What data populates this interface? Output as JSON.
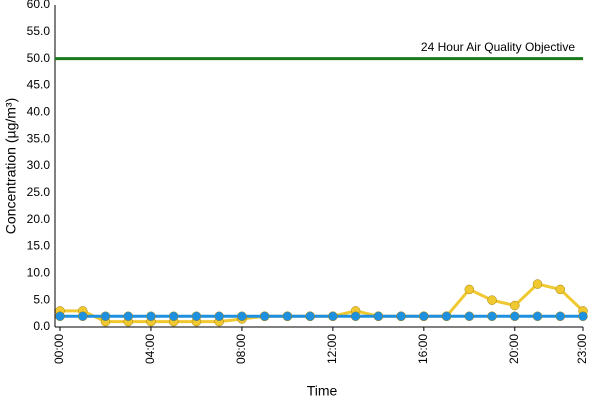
{
  "chart_data": {
    "type": "line",
    "x_label": "Time",
    "y_label": "Concentration (µg/m³)",
    "categories": [
      "00:00",
      null,
      null,
      null,
      "04:00",
      null,
      null,
      null,
      "08:00",
      null,
      null,
      null,
      "12:00",
      null,
      null,
      null,
      "16:00",
      null,
      null,
      null,
      "20:00",
      null,
      null,
      "23:00"
    ],
    "series": [
      {
        "color": "#f0c830",
        "values": [
          3,
          3,
          1,
          1,
          1,
          1,
          1,
          1,
          1.5,
          2,
          2,
          2,
          2,
          3,
          2,
          2,
          2,
          2,
          7,
          5,
          4,
          8,
          7,
          3
        ]
      },
      {
        "color": "#1e90e0",
        "values": [
          2,
          2,
          2,
          2,
          2,
          2,
          2,
          2,
          2,
          2,
          2,
          2,
          2,
          2,
          2,
          2,
          2,
          2,
          2,
          2,
          2,
          2,
          2,
          2
        ]
      }
    ],
    "objective": {
      "value": 50,
      "label": "24 Hour Air Quality Objective",
      "color": "#1a7a1a"
    },
    "ylim": [
      0,
      60
    ],
    "yticks": [
      {
        "value": 0,
        "label": "0.0"
      },
      {
        "value": 5,
        "label": "5.0"
      },
      {
        "value": 10,
        "label": "10.0"
      },
      {
        "value": 15,
        "label": "15.0"
      },
      {
        "value": 20,
        "label": "20.0"
      },
      {
        "value": 25,
        "label": "25.0"
      },
      {
        "value": 30,
        "label": "30.0"
      },
      {
        "value": 35,
        "label": "35.0"
      },
      {
        "value": 40,
        "label": "40.0"
      },
      {
        "value": 45,
        "label": "45.0"
      },
      {
        "value": 50,
        "label": "50.0"
      },
      {
        "value": 55,
        "label": "55.0"
      },
      {
        "value": 60,
        "label": "60.0"
      }
    ],
    "grid": false
  }
}
